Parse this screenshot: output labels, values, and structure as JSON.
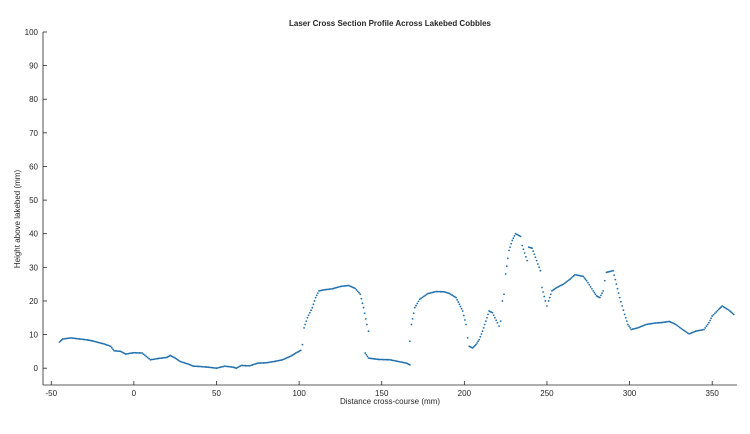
{
  "chart_data": {
    "type": "scatter",
    "title": "Laser Cross Section Profile Across Lakebed Cobbles",
    "xlabel": "Distance cross-course (mm)",
    "ylabel": "Height above lakebed (mm)",
    "xlim": [
      -55,
      365
    ],
    "ylim": [
      -5,
      100
    ],
    "xticks": [
      -50,
      0,
      50,
      100,
      150,
      200,
      250,
      300,
      350
    ],
    "yticks": [
      0,
      10,
      20,
      30,
      40,
      50,
      60,
      70,
      80,
      90,
      100
    ],
    "grid": false,
    "marker_color": "#1f6fad",
    "profile_anchors": [
      [
        -45,
        7.8
      ],
      [
        -43,
        8.7
      ],
      [
        -38,
        9.0
      ],
      [
        -33,
        8.7
      ],
      [
        -28,
        8.4
      ],
      [
        -25,
        8.1
      ],
      [
        -18,
        7.2
      ],
      [
        -14,
        6.5
      ],
      [
        -12,
        5.2
      ],
      [
        -8,
        5.0
      ],
      [
        -5,
        4.2
      ],
      [
        0,
        4.6
      ],
      [
        5,
        4.5
      ],
      [
        10,
        2.5
      ],
      [
        15,
        2.9
      ],
      [
        20,
        3.2
      ],
      [
        22,
        3.8
      ],
      [
        25,
        3.0
      ],
      [
        28,
        2.0
      ],
      [
        33,
        1.2
      ],
      [
        36,
        0.6
      ],
      [
        40,
        0.5
      ],
      [
        45,
        0.3
      ],
      [
        50,
        0.0
      ],
      [
        55,
        0.6
      ],
      [
        60,
        0.3
      ],
      [
        62,
        0.0
      ],
      [
        65,
        0.8
      ],
      [
        70,
        0.7
      ],
      [
        75,
        1.5
      ],
      [
        80,
        1.6
      ],
      [
        85,
        2.0
      ],
      [
        90,
        2.5
      ],
      [
        95,
        3.6
      ],
      [
        98,
        4.5
      ],
      [
        101,
        5.3
      ],
      [
        102,
        7.0
      ],
      [
        103,
        12.0
      ],
      [
        105,
        15.0
      ],
      [
        108,
        18.0
      ],
      [
        110,
        21.0
      ],
      [
        112,
        23.0
      ],
      [
        115,
        23.3
      ],
      [
        120,
        23.6
      ],
      [
        125,
        24.3
      ],
      [
        130,
        24.6
      ],
      [
        134,
        23.7
      ],
      [
        137,
        22.0
      ],
      [
        139,
        18.0
      ],
      [
        141,
        13.0
      ],
      [
        142,
        11.0
      ]
    ],
    "gap_segment": [
      [
        140,
        4.5
      ],
      [
        142,
        3.0
      ],
      [
        148,
        2.6
      ],
      [
        155,
        2.5
      ],
      [
        160,
        2.0
      ],
      [
        165,
        1.5
      ],
      [
        167,
        1.0
      ]
    ],
    "profile_anchors_2": [
      [
        167,
        8.0
      ],
      [
        168,
        13.0
      ],
      [
        170,
        18.0
      ],
      [
        173,
        20.5
      ],
      [
        178,
        22.2
      ],
      [
        183,
        22.8
      ],
      [
        188,
        22.7
      ],
      [
        191,
        22.2
      ],
      [
        195,
        21.0
      ],
      [
        197,
        19.0
      ],
      [
        199,
        17.0
      ],
      [
        201,
        13.0
      ],
      [
        202,
        9.0
      ],
      [
        203,
        6.5
      ],
      [
        205,
        6.0
      ],
      [
        207,
        7.0
      ],
      [
        209,
        8.5
      ],
      [
        211,
        11.0
      ],
      [
        213,
        14.0
      ],
      [
        215,
        17.0
      ],
      [
        217,
        16.5
      ],
      [
        220,
        13.5
      ],
      [
        221,
        12.5
      ],
      [
        222,
        14.0
      ],
      [
        223,
        20.0
      ],
      [
        224,
        22.0
      ],
      [
        225,
        28.0
      ],
      [
        227,
        35.0
      ],
      [
        229,
        38.0
      ],
      [
        231,
        40.0
      ],
      [
        234,
        39.2
      ],
      [
        235,
        36.5
      ],
      [
        238,
        32.0
      ],
      [
        239,
        36.0
      ],
      [
        241,
        35.7
      ],
      [
        243,
        33.0
      ],
      [
        246,
        29.0
      ],
      [
        247,
        24.0
      ],
      [
        249,
        20.0
      ],
      [
        250,
        18.5
      ],
      [
        251,
        20.0
      ],
      [
        253,
        23.0
      ],
      [
        256,
        24.0
      ],
      [
        260,
        25.0
      ],
      [
        264,
        26.5
      ],
      [
        267,
        27.8
      ],
      [
        272,
        27.3
      ],
      [
        274,
        26.0
      ],
      [
        278,
        23.0
      ],
      [
        280,
        21.5
      ],
      [
        282,
        21.0
      ],
      [
        284,
        23.0
      ],
      [
        285,
        26.0
      ],
      [
        286,
        28.5
      ],
      [
        290,
        29.0
      ],
      [
        292,
        25.0
      ],
      [
        294,
        21.0
      ],
      [
        297,
        16.0
      ],
      [
        299,
        13.0
      ],
      [
        301,
        11.5
      ],
      [
        305,
        12.0
      ],
      [
        310,
        13.0
      ],
      [
        315,
        13.4
      ],
      [
        320,
        13.6
      ],
      [
        324,
        13.9
      ],
      [
        328,
        13.0
      ],
      [
        332,
        11.5
      ],
      [
        336,
        10.2
      ],
      [
        340,
        11.0
      ],
      [
        345,
        11.5
      ],
      [
        348,
        13.5
      ],
      [
        350,
        15.5
      ],
      [
        354,
        17.5
      ],
      [
        356,
        18.5
      ],
      [
        360,
        17.3
      ],
      [
        363,
        16.0
      ]
    ]
  }
}
